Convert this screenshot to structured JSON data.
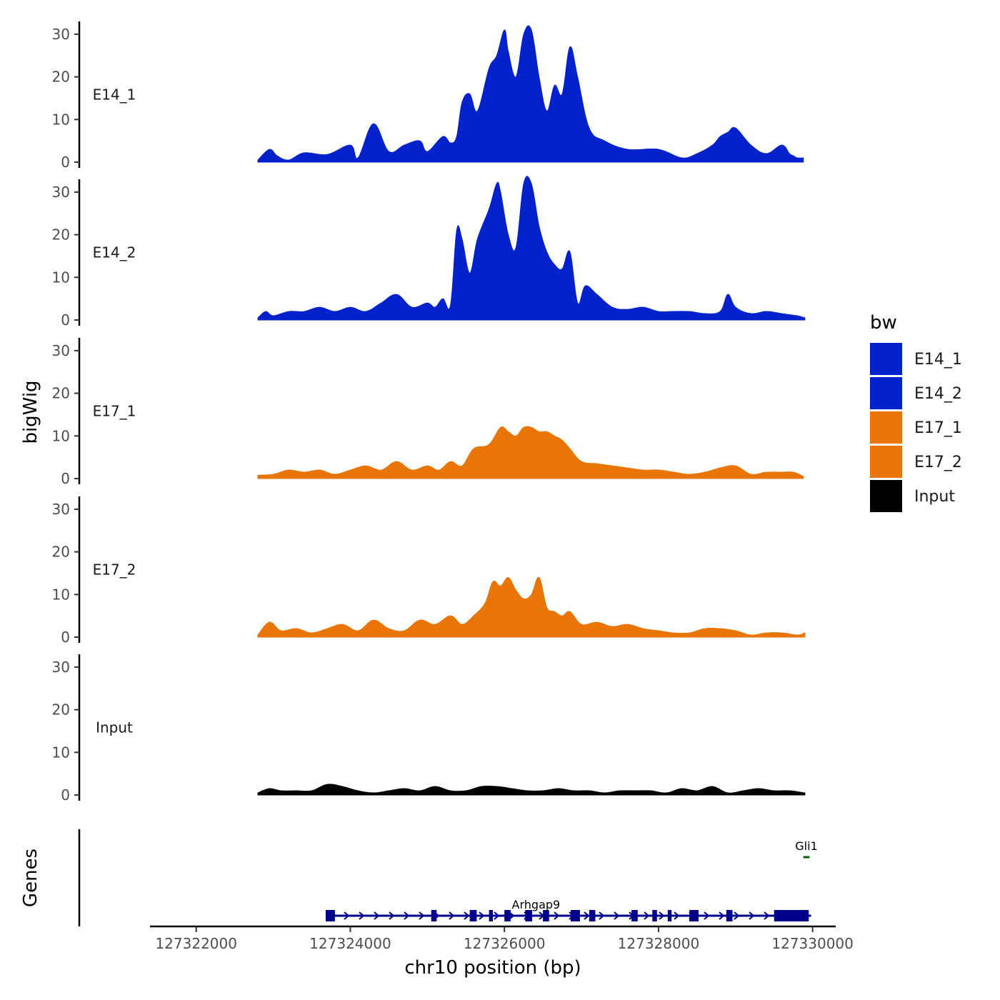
{
  "chart_data": {
    "type": "area",
    "title": "",
    "xlabel": "chr10 position (bp)",
    "ylabel": "bigWig",
    "genes_axis_label": "Genes",
    "xlim": [
      127321400,
      127330300
    ],
    "ylim": [
      0,
      33
    ],
    "x_ticks": [
      127322000,
      127324000,
      127326000,
      127328000,
      127330000
    ],
    "x_tick_labels": [
      "127322000",
      "127324000",
      "127326000",
      "127328000",
      "127330000"
    ],
    "y_ticks": [
      0,
      10,
      20,
      30
    ],
    "y_tick_labels": [
      "0",
      "10",
      "20",
      "30"
    ],
    "colors": {
      "E14": "#0322cc",
      "E17": "#e87505",
      "Input": "#000000",
      "gene_main": "#00008b",
      "gene_other": "#006400"
    },
    "legend": {
      "title": "bw",
      "position": "right",
      "entries": [
        {
          "label": "E14_1",
          "color": "#0322cc"
        },
        {
          "label": "E14_2",
          "color": "#0322cc"
        },
        {
          "label": "E17_1",
          "color": "#e87505"
        },
        {
          "label": "E17_2",
          "color": "#e87505"
        },
        {
          "label": "Input",
          "color": "#000000"
        }
      ]
    },
    "series": [
      {
        "name": "E14_1",
        "color": "#0322cc",
        "x": [
          127322800,
          127322950,
          127323050,
          127323200,
          127323400,
          127323700,
          127324000,
          127324100,
          127324300,
          127324500,
          127324700,
          127324900,
          127325000,
          127325200,
          127325300,
          127325380,
          127325450,
          127325550,
          127325650,
          127325800,
          127325900,
          127326000,
          127326050,
          127326150,
          127326250,
          127326350,
          127326450,
          127326550,
          127326650,
          127326750,
          127326850,
          127326950,
          127327100,
          127327300,
          127327600,
          127328000,
          127328300,
          127328500,
          127328700,
          127328800,
          127328900,
          127329000,
          127329200,
          127329400,
          127329600,
          127329700,
          127329750,
          127329800,
          127329880
        ],
        "values": [
          0.5,
          3,
          1.5,
          0.5,
          2.2,
          1.8,
          4,
          1,
          9,
          2.5,
          4,
          5,
          2.5,
          6,
          4.5,
          6,
          14,
          16,
          12,
          22,
          25,
          31,
          26,
          20,
          30,
          31,
          20,
          12,
          18,
          16,
          27,
          20,
          8,
          5,
          3,
          3,
          1,
          2,
          4,
          6,
          7,
          8,
          4,
          2,
          4,
          2,
          1.5,
          1,
          1
        ],
        "peak_label": "E14_1"
      },
      {
        "name": "E14_2",
        "color": "#0322cc",
        "x": [
          127322800,
          127322900,
          127323000,
          127323200,
          127323400,
          127323600,
          127323800,
          127324000,
          127324200,
          127324400,
          127324600,
          127324800,
          127325000,
          127325100,
          127325200,
          127325300,
          127325380,
          127325450,
          127325550,
          127325650,
          127325800,
          127325900,
          127325950,
          127326050,
          127326150,
          127326250,
          127326350,
          127326450,
          127326550,
          127326650,
          127326750,
          127326850,
          127326950,
          127327050,
          127327200,
          127327400,
          127327600,
          127327800,
          127328000,
          127328200,
          127328400,
          127328600,
          127328800,
          127328900,
          127329000,
          127329200,
          127329400,
          127329600,
          127329800,
          127329900
        ],
        "values": [
          0.5,
          2,
          1,
          2,
          2,
          3,
          2,
          3,
          2,
          4,
          6,
          3,
          4,
          3,
          5,
          3.5,
          21,
          19,
          11,
          19,
          26,
          32,
          30,
          20,
          17,
          32,
          32,
          22,
          16,
          13,
          12,
          16,
          4,
          8,
          6,
          3,
          2.5,
          3,
          2,
          2,
          2,
          1.5,
          2,
          6,
          3,
          1.5,
          2,
          1.5,
          1,
          0.5
        ]
      },
      {
        "name": "E17_1",
        "color": "#e87505",
        "x": [
          127322800,
          127323000,
          127323200,
          127323400,
          127323600,
          127323800,
          127324000,
          127324200,
          127324400,
          127324600,
          127324800,
          127325000,
          127325150,
          127325300,
          127325450,
          127325600,
          127325800,
          127325950,
          127326050,
          127326150,
          127326250,
          127326350,
          127326450,
          127326550,
          127326650,
          127326750,
          127326850,
          127327000,
          127327200,
          127327400,
          127327600,
          127327800,
          127328000,
          127328200,
          127328400,
          127328600,
          127328800,
          127329000,
          127329200,
          127329400,
          127329600,
          127329750,
          127329880
        ],
        "values": [
          0.8,
          1,
          2,
          1.5,
          2,
          1,
          2,
          3,
          2,
          4,
          2,
          3,
          2,
          4,
          3,
          7,
          8,
          12,
          11,
          10,
          12,
          12,
          11,
          11,
          10,
          9,
          7,
          4,
          3.5,
          3,
          2.5,
          2,
          2,
          1.5,
          1,
          1.5,
          2.5,
          3,
          1,
          1.5,
          1.5,
          1.5,
          0.5
        ]
      },
      {
        "name": "E17_2",
        "color": "#e87505",
        "x": [
          127322800,
          127322950,
          127323100,
          127323300,
          127323500,
          127323700,
          127323900,
          127324100,
          127324300,
          127324500,
          127324700,
          127324900,
          127325100,
          127325300,
          127325450,
          127325600,
          127325750,
          127325850,
          127325950,
          127326050,
          127326150,
          127326250,
          127326350,
          127326450,
          127326550,
          127326650,
          127326750,
          127326850,
          127327000,
          127327200,
          127327400,
          127327600,
          127327800,
          127328000,
          127328200,
          127328400,
          127328600,
          127328800,
          127329000,
          127329200,
          127329400,
          127329600,
          127329800,
          127329900
        ],
        "values": [
          0.5,
          3.5,
          1.5,
          2,
          1,
          2,
          3,
          1.5,
          4,
          2,
          1.5,
          4,
          3,
          5,
          3,
          5,
          8,
          13,
          12,
          14,
          11,
          9,
          10,
          14,
          7,
          6,
          5,
          6,
          3,
          3.5,
          2.5,
          3,
          2,
          1.5,
          1,
          1,
          2,
          2,
          1.5,
          0.5,
          1,
          1,
          0.5,
          1
        ]
      },
      {
        "name": "Input",
        "color": "#000000",
        "x": [
          127322800,
          127322950,
          127323100,
          127323300,
          127323500,
          127323700,
          127323900,
          127324100,
          127324300,
          127324500,
          127324700,
          127324900,
          127325100,
          127325300,
          127325500,
          127325700,
          127325900,
          127326100,
          127326300,
          127326500,
          127326700,
          127326900,
          127327100,
          127327300,
          127327500,
          127327700,
          127327900,
          127328100,
          127328300,
          127328500,
          127328700,
          127328900,
          127329100,
          127329300,
          127329500,
          127329700,
          127329900
        ],
        "values": [
          0.5,
          1.5,
          1,
          1,
          1,
          2.5,
          2,
          1,
          0.5,
          1,
          1.5,
          1,
          2,
          1,
          1,
          2,
          2,
          1.5,
          1,
          1,
          1.5,
          1,
          1,
          0.5,
          1,
          1,
          1,
          0.5,
          1.5,
          1,
          2,
          0.5,
          1,
          1.5,
          1,
          1,
          0.5
        ]
      }
    ],
    "genes": [
      {
        "name": "Arhgap9",
        "strand": "+",
        "start": 127323680,
        "end": 127329980,
        "color": "#00008b",
        "row": "lower",
        "exons": [
          [
            127323680,
            127323800
          ],
          [
            127325050,
            127325120
          ],
          [
            127325550,
            127325640
          ],
          [
            127325800,
            127325850
          ],
          [
            127326000,
            127326080
          ],
          [
            127326270,
            127326360
          ],
          [
            127326500,
            127326580
          ],
          [
            127326860,
            127326980
          ],
          [
            127327100,
            127327180
          ],
          [
            127327650,
            127327730
          ],
          [
            127327920,
            127327980
          ],
          [
            127328120,
            127328170
          ],
          [
            127328400,
            127328520
          ],
          [
            127328880,
            127328960
          ],
          [
            127329500,
            127329950
          ]
        ]
      },
      {
        "name": "Gli1",
        "strand": "-",
        "start": 127329880,
        "end": 127329960,
        "color": "#006400",
        "row": "upper",
        "exons": []
      }
    ]
  }
}
